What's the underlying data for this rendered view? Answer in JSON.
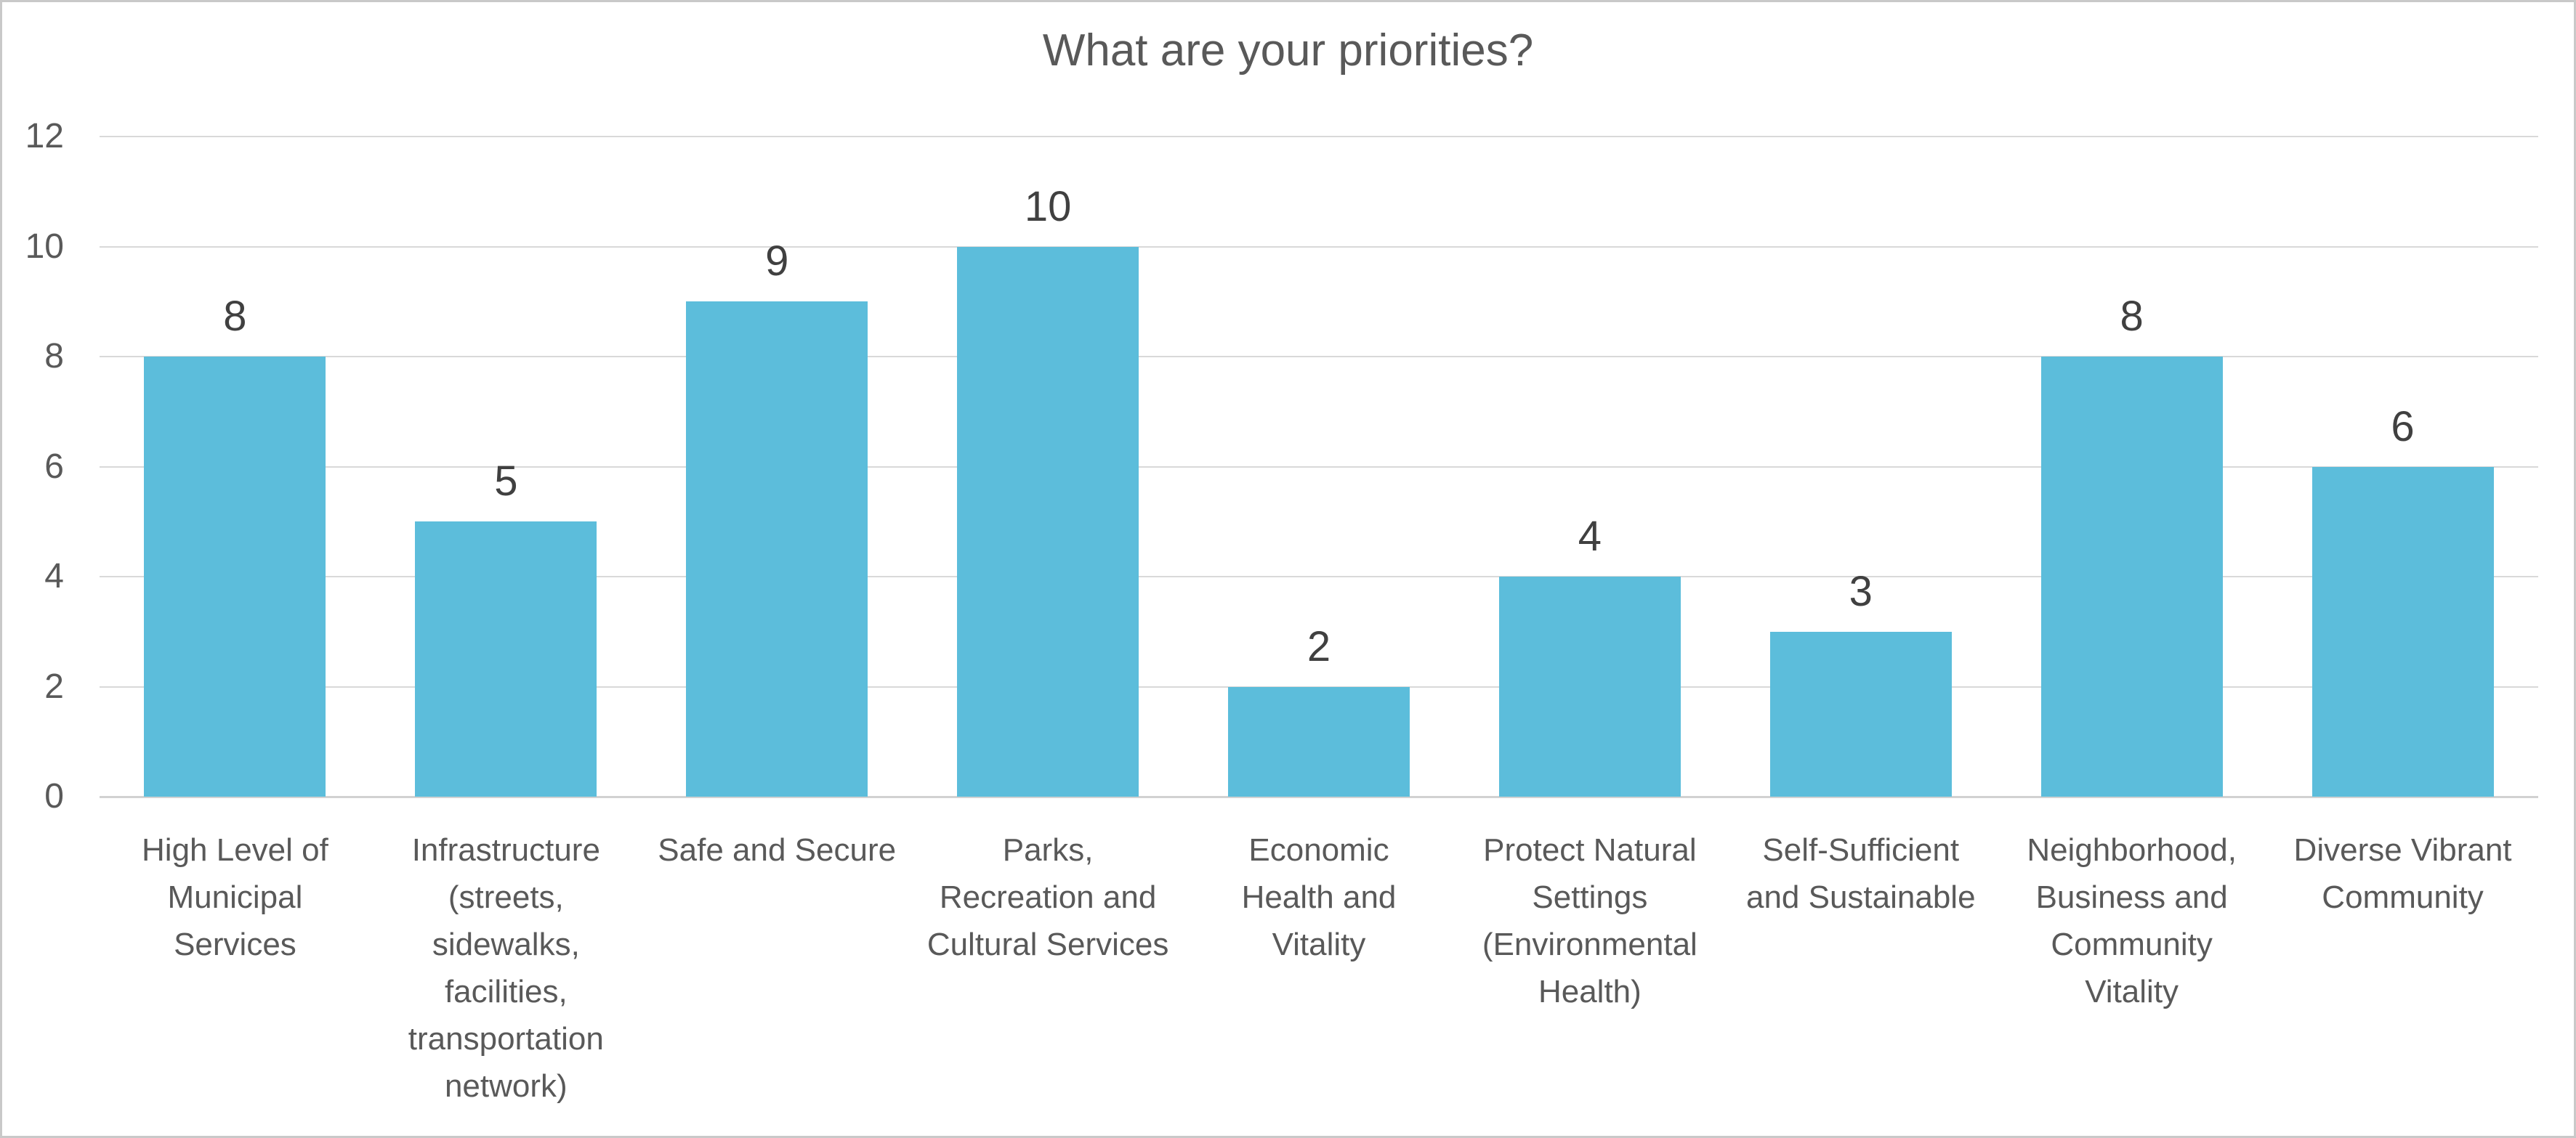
{
  "chart_data": {
    "type": "bar",
    "title": "What are your priorities?",
    "categories": [
      "High Level of Municipal Services",
      "Infrastructure (streets, sidewalks, facilities, transportation network)",
      "Safe and Secure",
      "Parks, Recreation and Cultural Services",
      "Economic Health and Vitality",
      "Protect Natural Settings (Environmental Health)",
      "Self-Sufficient and Sustainable",
      "Neighborhood, Business and Community Vitality",
      "Diverse Vibrant Community"
    ],
    "category_display": [
      "High Level of\nMunicipal\nServices",
      "Infrastructure\n(streets,\nsidewalks,\nfacilities,\ntransportation\nnetwork)",
      "Safe and Secure",
      "Parks,\nRecreation and\nCultural Services",
      "Economic\nHealth and\nVitality",
      "Protect Natural\nSettings\n(Environmental\nHealth)",
      "Self-Sufficient\nand Sustainable",
      "Neighborhood,\nBusiness and\nCommunity\nVitality",
      "Diverse Vibrant\nCommunity"
    ],
    "values": [
      8,
      5,
      9,
      10,
      2,
      4,
      3,
      8,
      6
    ],
    "data_labels": [
      "8",
      "5",
      "9",
      "10",
      "2",
      "4",
      "3",
      "8",
      "6"
    ],
    "yticks": [
      "0",
      "2",
      "4",
      "6",
      "8",
      "10",
      "12"
    ],
    "ytick_values": [
      0,
      2,
      4,
      6,
      8,
      10,
      12
    ],
    "ylim": [
      0,
      12
    ],
    "xlabel": "",
    "ylabel": "",
    "legend": "none",
    "grid": "horizontal"
  },
  "colors": {
    "bar_fill": "#5CBDDB",
    "title_text": "#595959",
    "axis_tick_text": "#595959",
    "category_text": "#595959",
    "data_label_text": "#404040",
    "gridline": "#D9D9D9",
    "axis_line": "#D2D2D2",
    "frame_border": "#C9C9C9",
    "background": "#FFFFFF"
  }
}
